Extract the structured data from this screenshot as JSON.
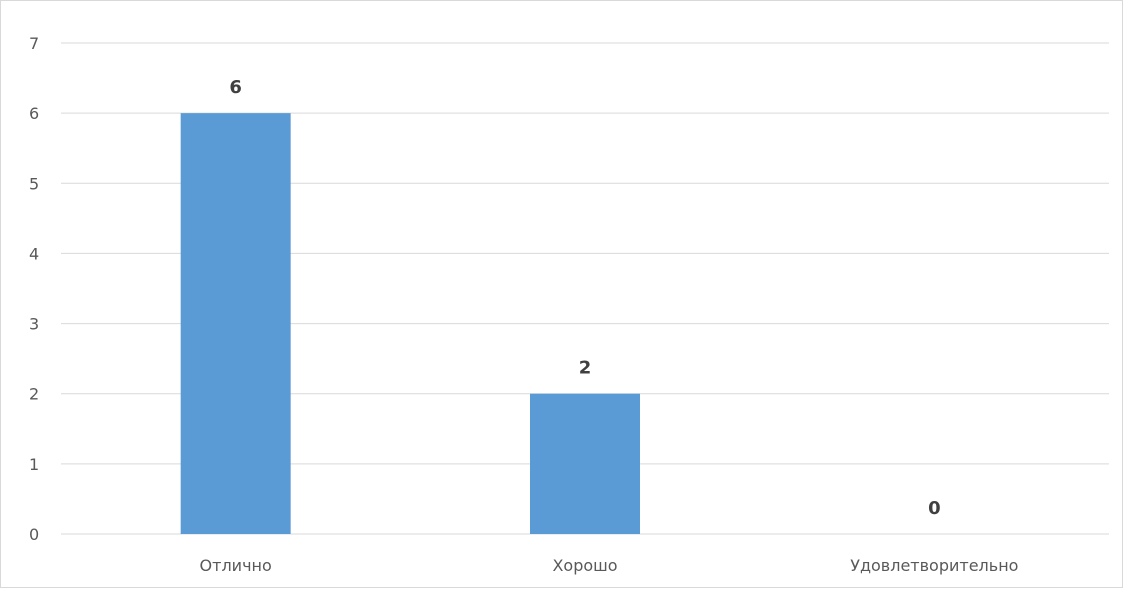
{
  "chart_data": {
    "type": "bar",
    "title": "",
    "xlabel": "",
    "ylabel": "",
    "categories": [
      "Отлично",
      "Хорошо",
      "Удовлетворительно"
    ],
    "values": [
      6,
      2,
      0
    ],
    "data_labels": [
      "6",
      "2",
      "0"
    ],
    "ylim": [
      0,
      7
    ],
    "yticks": [
      "0",
      "1",
      "2",
      "3",
      "4",
      "5",
      "6",
      "7"
    ],
    "grid": true,
    "legend": "none",
    "bar_color": "#5b9bd5",
    "grid_color": "#d9d9d9"
  }
}
